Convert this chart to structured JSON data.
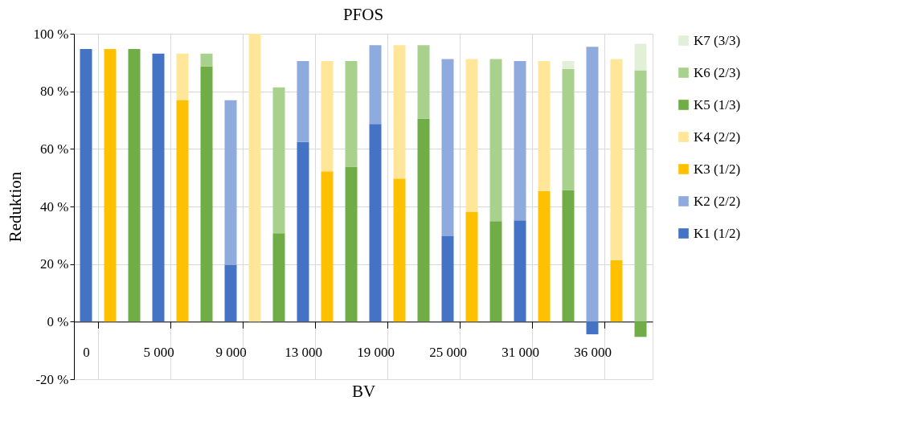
{
  "chart_data": {
    "type": "bar",
    "title": "PFOS",
    "xlabel": "BV",
    "ylabel": "Reduktion",
    "stacked": true,
    "categories": [
      "0",
      null,
      null,
      "5 000",
      null,
      null,
      "9 000",
      null,
      null,
      "13 000",
      null,
      null,
      "19 000",
      null,
      null,
      "25 000",
      null,
      null,
      "31 000",
      null,
      null,
      "36 000",
      null,
      null
    ],
    "series": [
      {
        "name": "K1 (1/2)",
        "color": "#4472c4",
        "values": [
          94.7,
          null,
          null,
          93.1,
          null,
          null,
          19.8,
          null,
          null,
          62.4,
          null,
          null,
          68.7,
          null,
          null,
          29.7,
          null,
          null,
          35.2,
          null,
          null,
          -4.4,
          null,
          null
        ]
      },
      {
        "name": "K2 (2/2)",
        "color": "#8faadc",
        "values": [
          null,
          null,
          null,
          null,
          null,
          null,
          57.1,
          null,
          null,
          28.1,
          null,
          null,
          27.3,
          null,
          null,
          61.5,
          null,
          null,
          55.3,
          null,
          null,
          95.5,
          null,
          null
        ]
      },
      {
        "name": "K3 (1/2)",
        "color": "#ffc000",
        "values": [
          null,
          94.7,
          null,
          null,
          77.0,
          null,
          null,
          null,
          null,
          null,
          52.2,
          null,
          null,
          49.7,
          null,
          null,
          38.2,
          null,
          null,
          45.4,
          null,
          null,
          21.4,
          null
        ]
      },
      {
        "name": "K4 (2/2)",
        "color": "#ffe699",
        "values": [
          null,
          null,
          null,
          null,
          16.1,
          null,
          null,
          100,
          null,
          null,
          38.3,
          null,
          null,
          46.3,
          null,
          null,
          53.0,
          null,
          null,
          45.1,
          null,
          null,
          69.8,
          null
        ]
      },
      {
        "name": "K5 (1/3)",
        "color": "#70ad47",
        "values": [
          null,
          null,
          94.7,
          null,
          null,
          88.7,
          null,
          null,
          30.7,
          null,
          null,
          53.8,
          null,
          null,
          70.5,
          null,
          null,
          34.9,
          null,
          null,
          45.7,
          null,
          null,
          -5.3
        ]
      },
      {
        "name": "K6 (2/3)",
        "color": "#a9d18e",
        "values": [
          null,
          null,
          null,
          null,
          null,
          4.4,
          null,
          null,
          50.7,
          null,
          null,
          36.7,
          null,
          null,
          25.5,
          null,
          null,
          56.3,
          null,
          null,
          42.1,
          null,
          null,
          87.3
        ]
      },
      {
        "name": "K7 (3/3)",
        "color": "#e2f0d9",
        "values": [
          null,
          null,
          null,
          null,
          null,
          null,
          null,
          null,
          null,
          null,
          null,
          null,
          null,
          null,
          null,
          null,
          null,
          null,
          null,
          null,
          2.7,
          null,
          null,
          9.2
        ]
      }
    ],
    "ylim": [
      -20,
      100
    ],
    "yticks": [
      {
        "value": -20,
        "label": "-20 %"
      },
      {
        "value": 0,
        "label": "0 %"
      },
      {
        "value": 20,
        "label": "20 %"
      },
      {
        "value": 40,
        "label": "40 %"
      },
      {
        "value": 60,
        "label": "60 %"
      },
      {
        "value": 80,
        "label": "80 %"
      },
      {
        "value": 100,
        "label": "100 %"
      }
    ],
    "grid": true,
    "legend": "right"
  }
}
